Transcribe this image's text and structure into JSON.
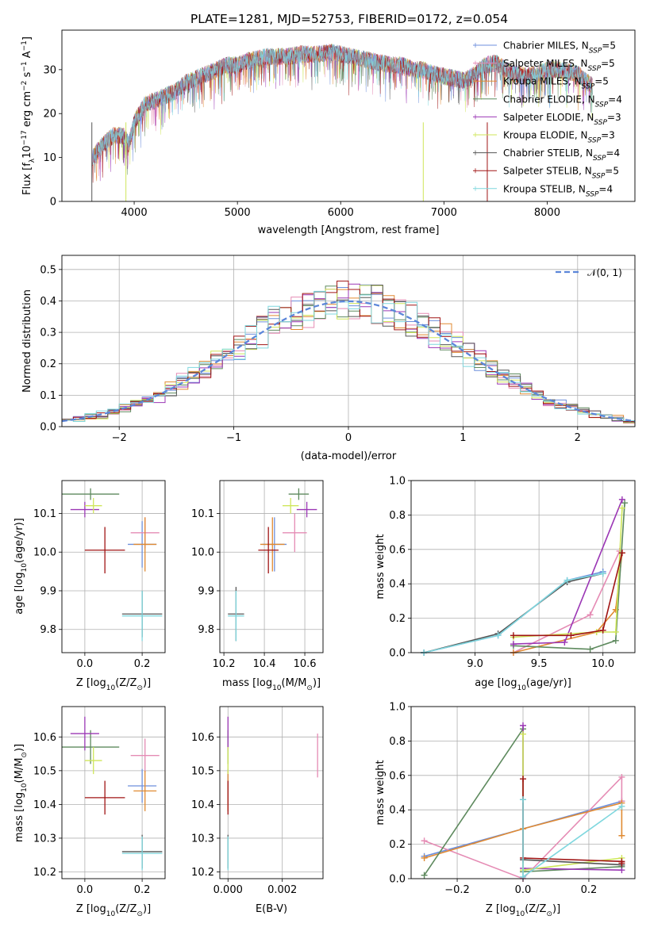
{
  "figure_title": "PLATE=1281, MJD=52753, FIBERID=0172, z=0.054",
  "colors": {
    "Chabrier MILES": "#6d8fdc",
    "Salpeter MILES": "#e58bb4",
    "Kroupa MILES": "#e08a32",
    "Chabrier ELODIE": "#5e8a5e",
    "Salpeter ELODIE": "#9b37b5",
    "Kroupa ELODIE": "#cfe65a",
    "Chabrier STELIB": "#555555",
    "Salpeter STELIB": "#a01414",
    "Kroupa STELIB": "#7fd7de"
  },
  "chart_data": [
    {
      "id": "spectrum",
      "type": "line",
      "title": "",
      "xlabel": "wavelength [Angstrom, rest frame]",
      "ylabel": "Flux [f",
      "ylabel_rest": "10",
      "ylabel_exp": "−17",
      "ylabel_unit": " erg cm",
      "ylabel_exp2": "−2",
      "ylabel_s": " s",
      "ylabel_exp3": "−1",
      "ylabel_a": " A",
      "ylabel_exp4": "−1",
      "ylabel_end": "]",
      "xlim": [
        3300,
        8850
      ],
      "ylim": [
        0,
        39
      ],
      "xticks": [
        4000,
        5000,
        6000,
        7000,
        8000
      ],
      "yticks": [
        0,
        10,
        20,
        30
      ],
      "grid": false,
      "legend_position": "top-right",
      "continuum_anchors": [
        [
          3590,
          10
        ],
        [
          3700,
          13
        ],
        [
          3800,
          15
        ],
        [
          3900,
          15
        ],
        [
          3950,
          13
        ],
        [
          4000,
          18
        ],
        [
          4100,
          22
        ],
        [
          4200,
          23
        ],
        [
          4300,
          24
        ],
        [
          4400,
          25
        ],
        [
          4500,
          27
        ],
        [
          4600,
          28
        ],
        [
          4700,
          29
        ],
        [
          4800,
          30
        ],
        [
          4900,
          31
        ],
        [
          5000,
          31
        ],
        [
          5100,
          32
        ],
        [
          5200,
          32.5
        ],
        [
          5300,
          33
        ],
        [
          5400,
          33
        ],
        [
          5500,
          33
        ],
        [
          5600,
          33.5
        ],
        [
          5700,
          33.5
        ],
        [
          5800,
          33.5
        ],
        [
          5900,
          34
        ],
        [
          6000,
          33.5
        ],
        [
          6100,
          33
        ],
        [
          6200,
          32.5
        ],
        [
          6300,
          32
        ],
        [
          6400,
          31.5
        ],
        [
          6500,
          31
        ],
        [
          6600,
          31
        ],
        [
          6700,
          30
        ],
        [
          6800,
          30
        ],
        [
          6900,
          29
        ],
        [
          7000,
          28.5
        ],
        [
          7100,
          28
        ],
        [
          7200,
          27.5
        ],
        [
          7300,
          29
        ],
        [
          7400,
          31
        ],
        [
          7500,
          31.5
        ],
        [
          7600,
          30
        ],
        [
          7700,
          29
        ],
        [
          7800,
          28.5
        ],
        [
          7900,
          29
        ],
        [
          8000,
          30
        ],
        [
          8100,
          30
        ],
        [
          8200,
          29.5
        ],
        [
          8300,
          29
        ],
        [
          8400,
          27
        ],
        [
          8450,
          26
        ]
      ],
      "dips": [
        [
          3590,
          0
        ],
        [
          3920,
          0
        ],
        [
          6800,
          0
        ],
        [
          7420,
          0
        ]
      ],
      "series_names": [
        "Chabrier MILES",
        "Salpeter MILES",
        "Kroupa MILES",
        "Chabrier ELODIE",
        "Salpeter ELODIE",
        "Kroupa ELODIE",
        "Chabrier STELIB",
        "Salpeter STELIB",
        "Kroupa STELIB"
      ],
      "legend": [
        {
          "name": "Chabrier MILES",
          "n": "5"
        },
        {
          "name": "Salpeter MILES",
          "n": "5"
        },
        {
          "name": "Kroupa MILES",
          "n": "5"
        },
        {
          "name": "Chabrier ELODIE",
          "n": "4"
        },
        {
          "name": "Salpeter ELODIE",
          "n": "3"
        },
        {
          "name": "Kroupa ELODIE",
          "n": "3"
        },
        {
          "name": "Chabrier STELIB",
          "n": "4"
        },
        {
          "name": "Salpeter STELIB",
          "n": "5"
        },
        {
          "name": "Kroupa STELIB",
          "n": "4"
        }
      ],
      "legend_prefix": ", N",
      "legend_sub": "SSP",
      "legend_eq": "="
    },
    {
      "id": "residuals",
      "type": "histogram",
      "xlabel": "(data-model)/error",
      "ylabel": "Normed distribution",
      "xlim": [
        -2.5,
        2.5
      ],
      "ylim": [
        0,
        0.545
      ],
      "xticks": [
        -2,
        -1,
        0,
        1,
        2
      ],
      "xtick_labels": [
        "−2",
        "−1",
        "0",
        "1",
        "2"
      ],
      "yticks": [
        0.0,
        0.1,
        0.2,
        0.3,
        0.4,
        0.5
      ],
      "ytick_labels": [
        "0.0",
        "0.1",
        "0.2",
        "0.3",
        "0.4",
        "0.5"
      ],
      "grid": true,
      "bin_width": 0.1,
      "legend": "𝒩(0, 1)",
      "legend_position": "top-right",
      "curve": "normal(0,1)"
    },
    {
      "id": "age_vs_Z",
      "type": "scatter",
      "xlabel": "Z [log",
      "xlabel_sub": "10",
      "xlabel_rest": "(Z/Z",
      "xlabel_sun": "⊙",
      "xlabel_end": ")]",
      "ylabel": "age  [log",
      "ylabel_sub": "10",
      "ylabel_rest": "(age/yr)]",
      "xlim": [
        -0.08,
        0.28
      ],
      "ylim": [
        9.74,
        10.185
      ],
      "xticks": [
        0.0,
        0.2
      ],
      "xtick_labels": [
        "0.0",
        "0.2"
      ],
      "yticks": [
        9.8,
        9.9,
        10.0,
        10.1
      ],
      "ytick_labels": [
        "9.8",
        "9.9",
        "10.0",
        "10.1"
      ],
      "grid": true,
      "points": [
        {
          "series": "Chabrier MILES",
          "x": 0.2,
          "y": 10.02,
          "xerr": 0.05,
          "yerr": 0.06
        },
        {
          "series": "Salpeter MILES",
          "x": 0.21,
          "y": 10.05,
          "xerr": 0.05,
          "yerr": 0.04
        },
        {
          "series": "Kroupa MILES",
          "x": 0.21,
          "y": 10.02,
          "xerr": 0.04,
          "yerr": 0.07
        },
        {
          "series": "Chabrier ELODIE",
          "x": 0.02,
          "y": 10.15,
          "xerr": 0.1,
          "yerr": 0.015
        },
        {
          "series": "Salpeter ELODIE",
          "x": 0.0,
          "y": 10.11,
          "xerr": 0.05,
          "yerr": 0.02
        },
        {
          "series": "Kroupa ELODIE",
          "x": 0.03,
          "y": 10.12,
          "xerr": 0.03,
          "yerr": 0.02
        },
        {
          "series": "Chabrier STELIB",
          "x": 0.2,
          "y": 9.84,
          "xerr": 0.07,
          "yerr": 0.06
        },
        {
          "series": "Salpeter STELIB",
          "x": 0.07,
          "y": 10.005,
          "xerr": 0.07,
          "yerr": 0.06
        },
        {
          "series": "Kroupa STELIB",
          "x": 0.2,
          "y": 9.835,
          "xerr": 0.07,
          "yerr": 0.065
        }
      ]
    },
    {
      "id": "age_vs_mass",
      "type": "scatter",
      "xlabel": "mass [log",
      "xlabel_sub": "10",
      "xlabel_rest": "(M/M",
      "xlabel_sun": "⊙",
      "xlabel_end": ")]",
      "xlim": [
        10.18,
        10.69
      ],
      "ylim": [
        9.74,
        10.185
      ],
      "xticks": [
        10.2,
        10.4,
        10.6
      ],
      "xtick_labels": [
        "10.2",
        "10.4",
        "10.6"
      ],
      "yticks": [
        9.8,
        9.9,
        10.0,
        10.1
      ],
      "ytick_labels": [
        "9.8",
        "9.9",
        "10.0",
        "10.1"
      ],
      "grid": true,
      "points": [
        {
          "series": "Chabrier MILES",
          "x": 10.45,
          "y": 10.02,
          "xerr": 0.06,
          "yerr": 0.07
        },
        {
          "series": "Salpeter MILES",
          "x": 10.55,
          "y": 10.05,
          "xerr": 0.06,
          "yerr": 0.05
        },
        {
          "series": "Kroupa MILES",
          "x": 10.44,
          "y": 10.02,
          "xerr": 0.06,
          "yerr": 0.07
        },
        {
          "series": "Chabrier ELODIE",
          "x": 10.57,
          "y": 10.15,
          "xerr": 0.05,
          "yerr": 0.015
        },
        {
          "series": "Salpeter ELODIE",
          "x": 10.61,
          "y": 10.11,
          "xerr": 0.05,
          "yerr": 0.02
        },
        {
          "series": "Kroupa ELODIE",
          "x": 10.53,
          "y": 10.12,
          "xerr": 0.04,
          "yerr": 0.02
        },
        {
          "series": "Chabrier STELIB",
          "x": 10.26,
          "y": 9.84,
          "xerr": 0.04,
          "yerr": 0.07
        },
        {
          "series": "Salpeter STELIB",
          "x": 10.42,
          "y": 10.005,
          "xerr": 0.05,
          "yerr": 0.06
        },
        {
          "series": "Kroupa STELIB",
          "x": 10.26,
          "y": 9.835,
          "xerr": 0.04,
          "yerr": 0.065
        }
      ]
    },
    {
      "id": "weight_vs_age",
      "type": "line",
      "xlabel": "age  [log",
      "xlabel_sub": "10",
      "xlabel_rest": "(age/yr)]",
      "ylabel": "mass weight",
      "xlim": [
        8.5,
        10.25
      ],
      "ylim": [
        0,
        1.0
      ],
      "xticks": [
        9.0,
        9.5,
        10.0
      ],
      "xtick_labels": [
        "9.0",
        "9.5",
        "10.0"
      ],
      "yticks": [
        0.0,
        0.2,
        0.4,
        0.6,
        0.8,
        1.0
      ],
      "ytick_labels": [
        "0.0",
        "0.2",
        "0.4",
        "0.6",
        "0.8",
        "1.0"
      ],
      "grid": true,
      "series": [
        {
          "name": "Chabrier MILES",
          "x": [
            8.6,
            9.18,
            9.72,
            10.0
          ],
          "y": [
            0.0,
            0.1,
            0.42,
            0.47
          ]
        },
        {
          "name": "Salpeter MILES",
          "x": [
            9.3,
            9.9,
            10.13
          ],
          "y": [
            0.0,
            0.22,
            0.59
          ]
        },
        {
          "name": "Kroupa MILES",
          "x": [
            9.3,
            9.95,
            10.1,
            10.15
          ],
          "y": [
            0.0,
            0.12,
            0.25,
            0.58
          ]
        },
        {
          "name": "Chabrier ELODIE",
          "x": [
            9.3,
            9.9,
            10.1,
            10.17
          ],
          "y": [
            0.04,
            0.02,
            0.07,
            0.87
          ]
        },
        {
          "name": "Salpeter ELODIE",
          "x": [
            9.3,
            9.7,
            10.15
          ],
          "y": [
            0.05,
            0.06,
            0.89
          ]
        },
        {
          "name": "Kroupa ELODIE",
          "x": [
            9.3,
            9.95,
            10.1,
            10.15
          ],
          "y": [
            0.09,
            0.12,
            0.12,
            0.84
          ]
        },
        {
          "name": "Chabrier STELIB",
          "x": [
            8.6,
            9.18,
            9.72,
            10.0
          ],
          "y": [
            0.0,
            0.11,
            0.41,
            0.46
          ]
        },
        {
          "name": "Salpeter STELIB",
          "x": [
            9.3,
            9.75,
            10.0,
            10.15
          ],
          "y": [
            0.1,
            0.1,
            0.13,
            0.58
          ]
        },
        {
          "name": "Kroupa STELIB",
          "x": [
            8.6,
            9.18,
            9.72,
            10.0
          ],
          "y": [
            0.0,
            0.1,
            0.42,
            0.46
          ]
        }
      ]
    },
    {
      "id": "mass_vs_Z",
      "type": "scatter",
      "xlabel": "Z [log",
      "xlabel_sub": "10",
      "xlabel_rest": "(Z/Z",
      "xlabel_sun": "⊙",
      "xlabel_end": ")]",
      "ylabel": "mass [log",
      "ylabel_sub": "10",
      "ylabel_rest": "(M/M",
      "ylabel_sun": "⊙",
      "ylabel_end": ")]",
      "xlim": [
        -0.08,
        0.28
      ],
      "ylim": [
        10.18,
        10.69
      ],
      "xticks": [
        0.0,
        0.2
      ],
      "xtick_labels": [
        "0.0",
        "0.2"
      ],
      "yticks": [
        10.2,
        10.3,
        10.4,
        10.5,
        10.6
      ],
      "ytick_labels": [
        "10.2",
        "10.3",
        "10.4",
        "10.5",
        "10.6"
      ],
      "grid": true,
      "points": [
        {
          "series": "Chabrier MILES",
          "x": 0.2,
          "y": 10.455,
          "xerr": 0.05,
          "yerr": 0.05
        },
        {
          "series": "Salpeter MILES",
          "x": 0.21,
          "y": 10.545,
          "xerr": 0.05,
          "yerr": 0.05
        },
        {
          "series": "Kroupa MILES",
          "x": 0.21,
          "y": 10.44,
          "xerr": 0.04,
          "yerr": 0.06
        },
        {
          "series": "Chabrier ELODIE",
          "x": 0.02,
          "y": 10.57,
          "xerr": 0.1,
          "yerr": 0.05
        },
        {
          "series": "Salpeter ELODIE",
          "x": 0.0,
          "y": 10.61,
          "xerr": 0.05,
          "yerr": 0.05
        },
        {
          "series": "Kroupa ELODIE",
          "x": 0.03,
          "y": 10.53,
          "xerr": 0.03,
          "yerr": 0.04
        },
        {
          "series": "Chabrier STELIB",
          "x": 0.2,
          "y": 10.26,
          "xerr": 0.07,
          "yerr": 0.05
        },
        {
          "series": "Salpeter STELIB",
          "x": 0.07,
          "y": 10.42,
          "xerr": 0.07,
          "yerr": 0.05
        },
        {
          "series": "Kroupa STELIB",
          "x": 0.2,
          "y": 10.255,
          "xerr": 0.07,
          "yerr": 0.05
        }
      ]
    },
    {
      "id": "mass_vs_ebv",
      "type": "scatter",
      "xlabel": "E(B-V)",
      "xlim": [
        -0.0003,
        0.0035
      ],
      "ylim": [
        10.18,
        10.69
      ],
      "xticks": [
        0.0,
        0.002
      ],
      "xtick_labels": [
        "0.000",
        "0.002"
      ],
      "yticks": [
        10.2,
        10.3,
        10.4,
        10.5,
        10.6
      ],
      "ytick_labels": [
        "10.2",
        "10.3",
        "10.4",
        "10.5",
        "10.6"
      ],
      "grid": true,
      "points": [
        {
          "series": "Chabrier MILES",
          "x": 0.0,
          "y": 10.455,
          "xerr": 0,
          "yerr": 0.05
        },
        {
          "series": "Salpeter MILES",
          "x": 0.0033,
          "y": 10.545,
          "xerr": 0,
          "yerr": 0.065
        },
        {
          "series": "Kroupa MILES",
          "x": 0.0,
          "y": 10.44,
          "xerr": 0,
          "yerr": 0.06
        },
        {
          "series": "Chabrier ELODIE",
          "x": 0.0,
          "y": 10.57,
          "xerr": 0,
          "yerr": 0.05
        },
        {
          "series": "Salpeter ELODIE",
          "x": 0.0,
          "y": 10.61,
          "xerr": 0,
          "yerr": 0.05
        },
        {
          "series": "Kroupa ELODIE",
          "x": 0.0,
          "y": 10.53,
          "xerr": 0,
          "yerr": 0.04
        },
        {
          "series": "Chabrier STELIB",
          "x": 0.0,
          "y": 10.26,
          "xerr": 0,
          "yerr": 0.05
        },
        {
          "series": "Salpeter STELIB",
          "x": 0.0,
          "y": 10.42,
          "xerr": 0,
          "yerr": 0.05
        },
        {
          "series": "Kroupa STELIB",
          "x": 0.0,
          "y": 10.255,
          "xerr": 0,
          "yerr": 0.05
        }
      ]
    },
    {
      "id": "weight_vs_Z",
      "type": "line",
      "xlabel": "Z [log",
      "xlabel_sub": "10",
      "xlabel_rest": "(Z/Z",
      "xlabel_sun": "⊙",
      "xlabel_end": ")]",
      "ylabel": "mass weight",
      "xlim": [
        -0.34,
        0.34
      ],
      "ylim": [
        0,
        1.0
      ],
      "xticks": [
        -0.2,
        0.0,
        0.2
      ],
      "xtick_labels": [
        "−0.2",
        "0.0",
        "0.2"
      ],
      "yticks": [
        0.0,
        0.2,
        0.4,
        0.6,
        0.8,
        1.0
      ],
      "ytick_labels": [
        "0.0",
        "0.2",
        "0.4",
        "0.6",
        "0.8",
        "1.0"
      ],
      "grid": true,
      "series": [
        {
          "name": "Chabrier MILES",
          "x": [
            -0.3,
            0.0,
            0.3
          ],
          "y": [
            0.13,
            0.29,
            0.45
          ]
        },
        {
          "name": "Salpeter MILES",
          "x": [
            -0.3,
            0.0,
            0.3,
            0.3
          ],
          "y": [
            0.22,
            0.0,
            0.59,
            0.45
          ]
        },
        {
          "name": "Kroupa MILES",
          "x": [
            -0.3,
            0.0,
            0.3,
            0.3
          ],
          "y": [
            0.12,
            0.29,
            0.44,
            0.25
          ]
        },
        {
          "name": "Chabrier ELODIE",
          "x": [
            -0.3,
            0.0,
            0.0,
            0.3
          ],
          "y": [
            0.02,
            0.87,
            0.04,
            0.07
          ]
        },
        {
          "name": "Salpeter ELODIE",
          "x": [
            0.0,
            0.0,
            0.3
          ],
          "y": [
            0.89,
            0.06,
            0.05
          ]
        },
        {
          "name": "Kroupa ELODIE",
          "x": [
            0.0,
            0.0,
            0.3
          ],
          "y": [
            0.84,
            0.05,
            0.12
          ]
        },
        {
          "name": "Chabrier STELIB",
          "x": [
            0.0,
            0.0,
            0.3
          ],
          "y": [
            0.46,
            0.11,
            0.08
          ]
        },
        {
          "name": "Salpeter STELIB",
          "x": [
            0.0,
            0.0,
            0.3,
            0.3
          ],
          "y": [
            0.58,
            0.12,
            0.1,
            0.09
          ]
        },
        {
          "name": "Kroupa STELIB",
          "x": [
            0.0,
            0.0,
            0.3
          ],
          "y": [
            0.46,
            0.01,
            0.42
          ]
        }
      ]
    }
  ]
}
